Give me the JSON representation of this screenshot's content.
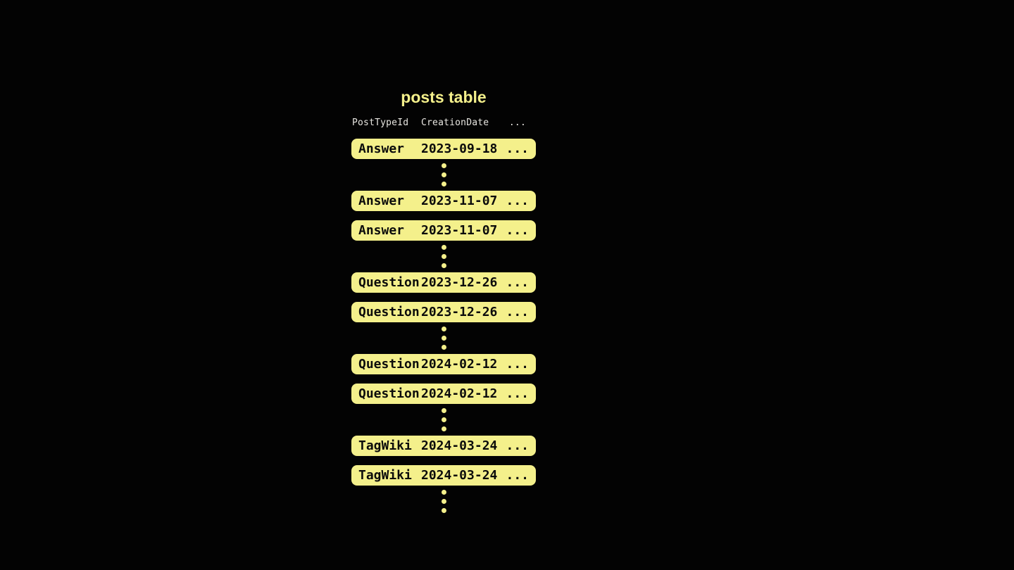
{
  "title": "posts table",
  "colors": {
    "background": "#030303",
    "accent_yellow": "#F4F08B",
    "row_text": "#0B0B0B",
    "header_text": "#E7E5E0"
  },
  "table": {
    "columns": [
      "PostTypeId",
      "CreationDate",
      "..."
    ],
    "sequence": [
      {
        "kind": "row",
        "post_type": "Answer",
        "creation_date": "2023-09-18",
        "more": "..."
      },
      {
        "kind": "dots"
      },
      {
        "kind": "row",
        "post_type": "Answer",
        "creation_date": "2023-11-07",
        "more": "..."
      },
      {
        "kind": "row",
        "post_type": "Answer",
        "creation_date": "2023-11-07",
        "more": "..."
      },
      {
        "kind": "dots"
      },
      {
        "kind": "row",
        "post_type": "Question",
        "creation_date": "2023-12-26",
        "more": "..."
      },
      {
        "kind": "row",
        "post_type": "Question",
        "creation_date": "2023-12-26",
        "more": "..."
      },
      {
        "kind": "dots"
      },
      {
        "kind": "row",
        "post_type": "Question",
        "creation_date": "2024-02-12",
        "more": "..."
      },
      {
        "kind": "row",
        "post_type": "Question",
        "creation_date": "2024-02-12",
        "more": "..."
      },
      {
        "kind": "dots"
      },
      {
        "kind": "row",
        "post_type": "TagWiki",
        "creation_date": "2024-03-24",
        "more": "..."
      },
      {
        "kind": "row",
        "post_type": "TagWiki",
        "creation_date": "2024-03-24",
        "more": "..."
      },
      {
        "kind": "dots"
      }
    ]
  }
}
